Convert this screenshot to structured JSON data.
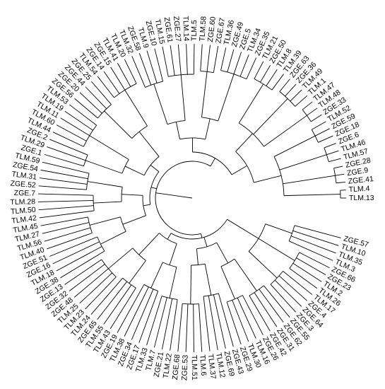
{
  "tree": {
    "line_color": "#000000",
    "background": "#ffffff",
    "leaves": [
      "TLM.13",
      "TLM.4",
      "ZGE.41",
      "ZGE.9",
      "ZGE.28",
      "TLM.57",
      "TLM.46",
      "ZGE.6",
      "ZGE.18",
      "ZGE.59",
      "TLM.52",
      "ZGE.33",
      "TLM.48",
      "TLM.47",
      "TLM.1",
      "TLM.49",
      "ZGE.36",
      "ZGE.63",
      "TLM.39",
      "TLM.8",
      "ZGE.50",
      "TLM.21",
      "ZGE.35",
      "TLM.34",
      "ZGE.5",
      "ZGE.49",
      "TLM.36",
      "ZGE.67",
      "ZGE.60",
      "TLM.58",
      "TLM.5",
      "TLM.14",
      "ZGE.27",
      "ZGE.61",
      "TLM.15",
      "ZGE.10",
      "TLM.9",
      "ZGE.58",
      "TLM.32",
      "TLM.20",
      "TLM.41",
      "ZGE.15",
      "ZGE.14",
      "TLM.54",
      "ZGE.25",
      "ZGE.44",
      "ZGE.20",
      "ZGE.56",
      "TLM.53",
      "TLM.19",
      "TLM.11",
      "TLM.60",
      "TLM.44",
      "ZGE.2",
      "TLM.29",
      "ZGE.1",
      "TLM.59",
      "ZGE.54",
      "TLM.31",
      "ZGE.52",
      "ZGE.7",
      "TLM.28",
      "TLM.50",
      "TLM.42",
      "TLM.45",
      "TLM.27",
      "TLM.56",
      "TLM.40",
      "ZGE.51",
      "ZGE.16",
      "TLM.18",
      "ZGE.38",
      "ZGE.13",
      "ZGE.32",
      "ZGE.48",
      "TLM.25",
      "TLM.23",
      "TLM.24",
      "ZGE.65",
      "TLM.55",
      "TLM.43",
      "ZGE.19",
      "TLM.38",
      "ZGE.34",
      "ZGE.17",
      "TLM.33",
      "TLM.7",
      "ZGE.21",
      "TLM.22",
      "ZGE.68",
      "ZGE.53",
      "TLM.51",
      "TLM.6",
      "TLM.37",
      "TLM.12",
      "ZGE.69",
      "ZGE.43",
      "ZGE.29",
      "TLM.30",
      "TLM.16",
      "ZGE.26",
      "ZGE.42",
      "ZGE.31",
      "ZGE.62",
      "ZGE.55",
      "ZGE.3",
      "ZGE.64",
      "ZGE.4",
      "TLM.17",
      "TLM.26",
      "TLM.2",
      "ZGE.23",
      "ZGE.66",
      "TLM.3",
      "TLM.35",
      "TLM.10",
      "ZGE.57"
    ]
  }
}
